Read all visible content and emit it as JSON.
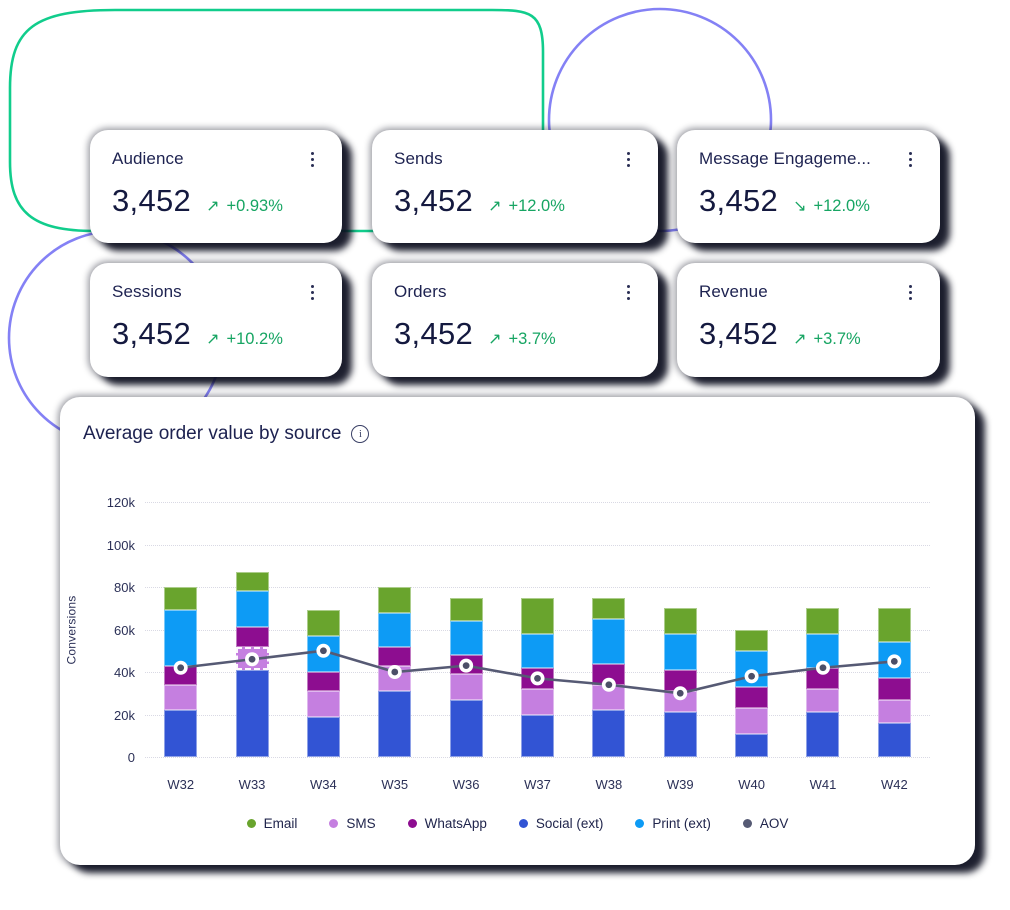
{
  "stat_cards": [
    {
      "title": "Audience",
      "value": "3,452",
      "trend": "up",
      "change": "+0.93%"
    },
    {
      "title": "Sends",
      "value": "3,452",
      "trend": "up",
      "change": "+12.0%"
    },
    {
      "title": "Message Engageme...",
      "value": "3,452",
      "trend": "down",
      "change": "+12.0%"
    },
    {
      "title": "Sessions",
      "value": "3,452",
      "trend": "up",
      "change": "+10.2%"
    },
    {
      "title": "Orders",
      "value": "3,452",
      "trend": "up",
      "change": "+3.7%"
    },
    {
      "title": "Revenue",
      "value": "3,452",
      "trend": "up",
      "change": "+3.7%"
    }
  ],
  "chart": {
    "title": "Average order value by source",
    "info_icon": "i",
    "ylabel": "Conversions"
  },
  "chart_data": {
    "type": "stacked-bar+line",
    "categories": [
      "W32",
      "W33",
      "W34",
      "W35",
      "W36",
      "W37",
      "W38",
      "W39",
      "W40",
      "W41",
      "W42"
    ],
    "series": [
      {
        "name": "Social (ext)",
        "color": "#3254d4",
        "values": [
          22000,
          41000,
          19000,
          31000,
          27000,
          20000,
          22000,
          21000,
          11000,
          21000,
          16000
        ]
      },
      {
        "name": "SMS",
        "color": "#c57fe0",
        "values": [
          12000,
          11000,
          12000,
          12000,
          12000,
          12000,
          12000,
          10000,
          12000,
          11000,
          11000
        ]
      },
      {
        "name": "WhatsApp",
        "color": "#8d0d90",
        "values": [
          9000,
          9000,
          9000,
          9000,
          9000,
          10000,
          10000,
          10000,
          10000,
          10000,
          10000
        ]
      },
      {
        "name": "Print (ext)",
        "color": "#0d9bf5",
        "values": [
          26000,
          17000,
          17000,
          16000,
          16000,
          16000,
          21000,
          17000,
          17000,
          16000,
          17000
        ]
      },
      {
        "name": "Email",
        "color": "#69a42d",
        "values": [
          11000,
          9000,
          12000,
          12000,
          11000,
          17000,
          10000,
          12000,
          10000,
          12000,
          16000
        ]
      }
    ],
    "line": {
      "name": "AOV",
      "color": "#565a74",
      "values": [
        42000,
        46000,
        50000,
        40000,
        43000,
        37000,
        34000,
        30000,
        38000,
        42000,
        45000
      ]
    },
    "ylim": [
      0,
      120000
    ],
    "yticks": [
      {
        "label": "0",
        "value": 0
      },
      {
        "label": "20k",
        "value": 20000
      },
      {
        "label": "40k",
        "value": 40000
      },
      {
        "label": "60k",
        "value": 60000
      },
      {
        "label": "80k",
        "value": 80000
      },
      {
        "label": "100k",
        "value": 100000
      },
      {
        "label": "120k",
        "value": 120000
      }
    ],
    "grid": "horizontal-dotted",
    "legend_position": "bottom",
    "legend": [
      {
        "label": "Email",
        "color": "#69a42d"
      },
      {
        "label": "SMS",
        "color": "#c57fe0"
      },
      {
        "label": "WhatsApp",
        "color": "#8d0d90"
      },
      {
        "label": "Social (ext)",
        "color": "#3254d4"
      },
      {
        "label": "Print (ext)",
        "color": "#0d9bf5"
      },
      {
        "label": "AOV",
        "color": "#565a74"
      }
    ],
    "highlight": {
      "category": "W33",
      "series": "SMS"
    }
  },
  "colors": {
    "positive_green": "#17a563",
    "text_navy": "#1d2250",
    "value_navy": "#14193f",
    "decor_green": "#11cd8c",
    "decor_purple": "#8481f5",
    "gridline": "#d9d9e4",
    "aov_marker_center": "#4c4f68"
  }
}
